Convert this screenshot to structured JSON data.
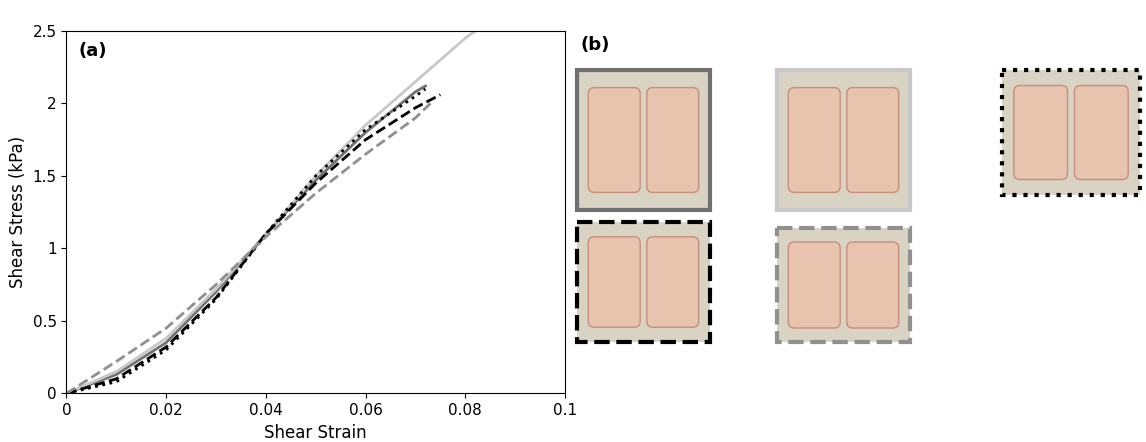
{
  "chart_data": {
    "type": "line",
    "panel_label": "(a)",
    "second_panel_label": "(b)",
    "x_label": "Shear Strain",
    "y_label": "Shear Stress (kPa)",
    "xlim": [
      0,
      0.1
    ],
    "xticks": [
      0,
      0.02,
      0.04,
      0.06,
      0.08,
      0.1
    ],
    "ylim": [
      0,
      2.5
    ],
    "yticks": [
      0,
      0.5,
      1,
      1.5,
      2,
      2.5
    ],
    "grid": false,
    "series": [
      {
        "color": "#707070",
        "line_style": "solid",
        "x": [
          0,
          0.01,
          0.02,
          0.03,
          0.04,
          0.05,
          0.06,
          0.07,
          0.072
        ],
        "values": [
          0,
          0.13,
          0.35,
          0.7,
          1.1,
          1.47,
          1.8,
          2.08,
          2.12
        ]
      },
      {
        "color": "#c8c8c8",
        "line_style": "solid",
        "x": [
          0,
          0.01,
          0.02,
          0.03,
          0.04,
          0.05,
          0.06,
          0.07,
          0.08,
          0.082
        ],
        "values": [
          0,
          0.15,
          0.38,
          0.72,
          1.1,
          1.5,
          1.85,
          2.15,
          2.45,
          2.5
        ]
      },
      {
        "color": "#000000",
        "line_style": "dotted",
        "x": [
          0,
          0.01,
          0.02,
          0.03,
          0.04,
          0.05,
          0.06,
          0.07,
          0.072
        ],
        "values": [
          0,
          0.08,
          0.3,
          0.65,
          1.1,
          1.5,
          1.82,
          2.05,
          2.1
        ]
      },
      {
        "color": "#000000",
        "line_style": "dashed",
        "x": [
          0,
          0.01,
          0.02,
          0.03,
          0.04,
          0.05,
          0.06,
          0.07,
          0.075
        ],
        "values": [
          0,
          0.1,
          0.32,
          0.66,
          1.1,
          1.45,
          1.75,
          1.97,
          2.06
        ]
      },
      {
        "color": "#909090",
        "line_style": "dashed",
        "x": [
          0,
          0.01,
          0.02,
          0.03,
          0.04,
          0.05,
          0.06,
          0.07,
          0.073
        ],
        "values": [
          0,
          0.22,
          0.45,
          0.75,
          1.08,
          1.38,
          1.65,
          1.9,
          2.0
        ]
      }
    ]
  }
}
